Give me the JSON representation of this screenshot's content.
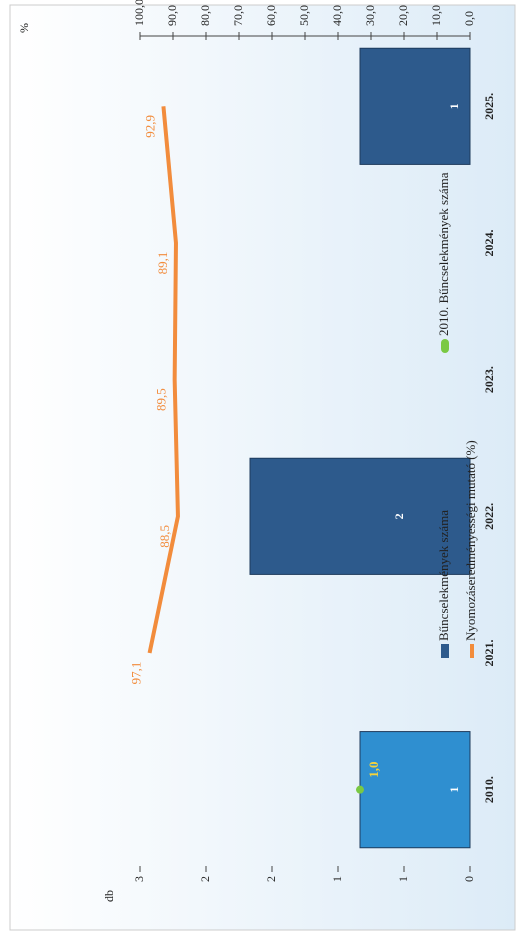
{
  "chart_data": {
    "type": "bar",
    "categories": [
      "2010.",
      "2021.",
      "2022.",
      "2023.",
      "2024.",
      "2025."
    ],
    "ylabel": "db",
    "y2label": "%",
    "ylim": [
      0,
      3
    ],
    "yticks": [
      {
        "value": 0,
        "label": "0"
      },
      {
        "value": 0.6,
        "label": "1"
      },
      {
        "value": 1.2,
        "label": "1"
      },
      {
        "value": 1.8,
        "label": "2"
      },
      {
        "value": 2.4,
        "label": "2"
      },
      {
        "value": 3,
        "label": "3"
      }
    ],
    "y2lim": [
      0,
      100
    ],
    "y2ticks": [
      {
        "value": 0,
        "label": "0,0"
      },
      {
        "value": 10,
        "label": "10,0"
      },
      {
        "value": 20,
        "label": "20,0"
      },
      {
        "value": 30,
        "label": "30,0"
      },
      {
        "value": 40,
        "label": "40,0"
      },
      {
        "value": 50,
        "label": "50,0"
      },
      {
        "value": 60,
        "label": "60,0"
      },
      {
        "value": 70,
        "label": "70,0"
      },
      {
        "value": 80,
        "label": "80,0"
      },
      {
        "value": 90,
        "label": "90,0"
      },
      {
        "value": 100,
        "label": "100,0"
      }
    ],
    "series": [
      {
        "name": "Bűncselekmények száma",
        "type": "bar",
        "color": "#2d5a8c",
        "colors": [
          "#2f8fd0",
          "#2d5a8c",
          "#2d5a8c",
          "#2d5a8c",
          "#2d5a8c",
          "#2d5a8c"
        ],
        "values": [
          1,
          null,
          2,
          null,
          null,
          1
        ]
      },
      {
        "name": "Nyomozáseredményességi mutató (%)",
        "type": "line",
        "axis": "y2",
        "color": "#f28c3c",
        "values": [
          null,
          97.1,
          88.5,
          89.5,
          89.1,
          92.9
        ],
        "value_labels": [
          null,
          "97,1",
          "88,5",
          "89,5",
          "89,1",
          "92,9"
        ]
      },
      {
        "name": "2010. Bűncselekmények száma",
        "type": "scatter",
        "color": "#7ac943",
        "values": [
          1,
          null,
          null,
          null,
          null,
          null
        ],
        "value_labels": [
          "1,0",
          null,
          null,
          null,
          null,
          null
        ]
      }
    ]
  }
}
